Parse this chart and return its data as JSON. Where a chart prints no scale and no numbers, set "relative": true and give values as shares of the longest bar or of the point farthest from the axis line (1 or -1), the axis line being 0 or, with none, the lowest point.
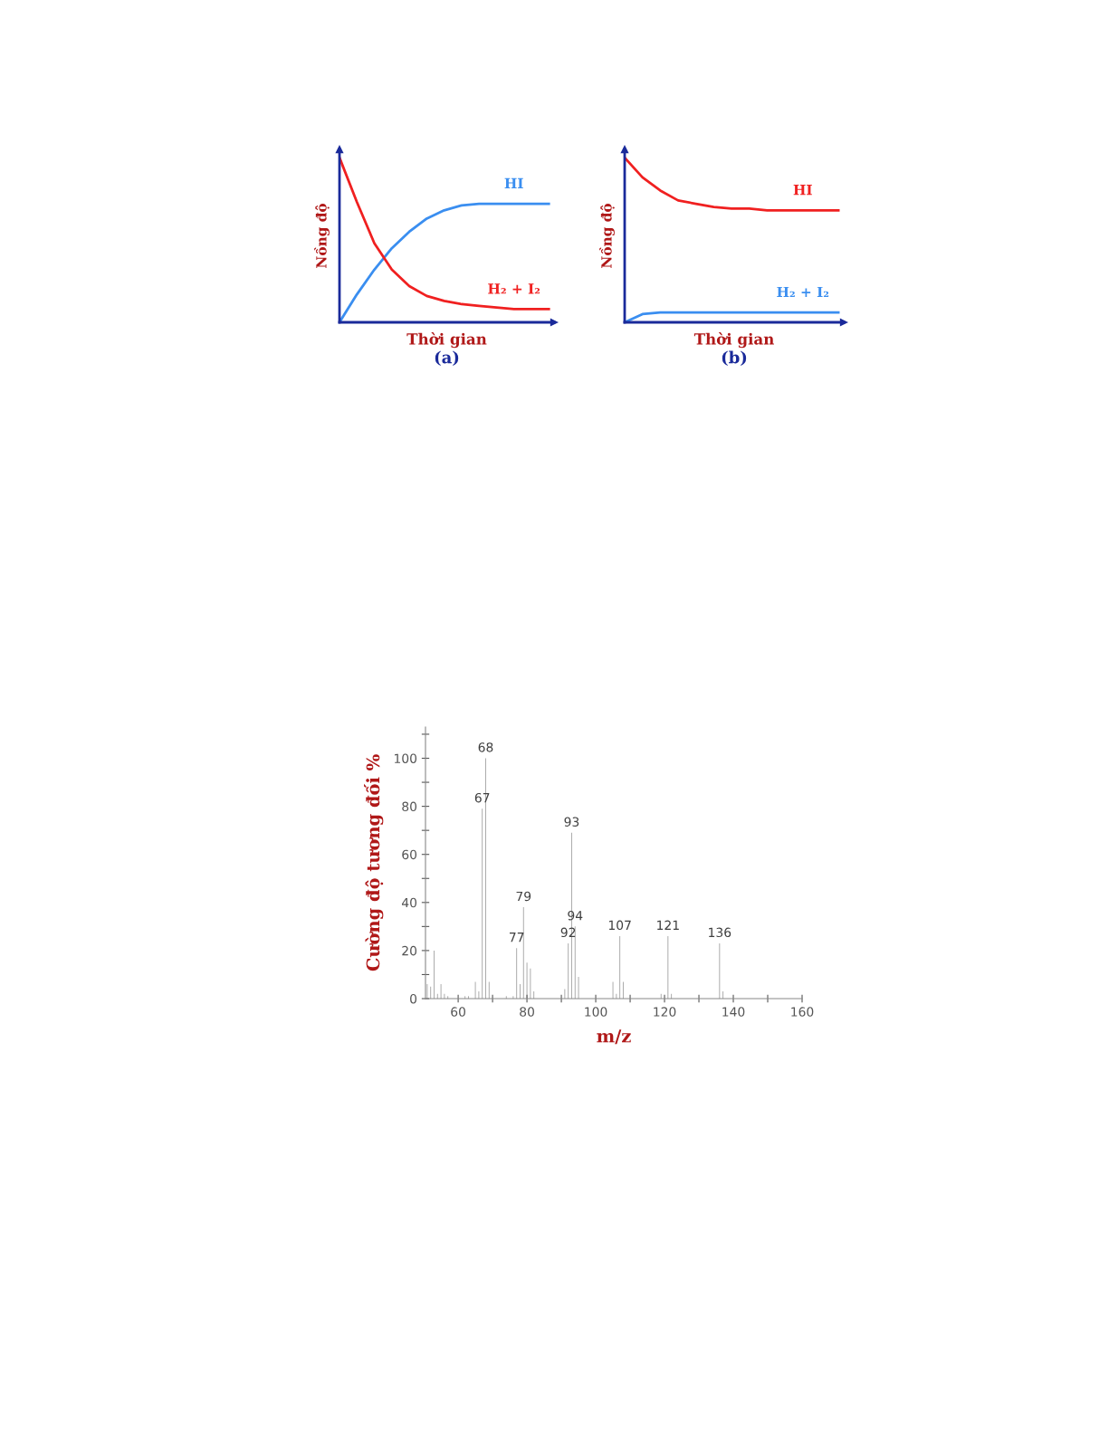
{
  "chart_data": [
    {
      "type": "line",
      "relative": true,
      "title": "(a)",
      "xlabel": "Thời gian",
      "ylabel": "Nồng độ",
      "categories": [
        null,
        null,
        null,
        null,
        null,
        null,
        null,
        null,
        null,
        null,
        null,
        null,
        null
      ],
      "series": [
        {
          "color": "#3a8ef0",
          "values": [
            0,
            0.17,
            0.32,
            0.45,
            0.55,
            0.63,
            0.68,
            0.71,
            0.72,
            0.72,
            0.72,
            0.72,
            0.72
          ]
        },
        {
          "color": "#f02020",
          "values": [
            1.0,
            0.73,
            0.48,
            0.32,
            0.22,
            0.16,
            0.13,
            0.11,
            0.1,
            0.09,
            0.08,
            0.08,
            0.08
          ]
        }
      ],
      "annotations": [
        "HI",
        "H₂ + I₂"
      ],
      "grid": false
    },
    {
      "type": "line",
      "relative": true,
      "title": "(b)",
      "xlabel": "Thời gian",
      "ylabel": "Nồng độ",
      "categories": [
        null,
        null,
        null,
        null,
        null,
        null,
        null,
        null,
        null,
        null,
        null,
        null,
        null
      ],
      "series": [
        {
          "color": "#f02020",
          "values": [
            1.0,
            0.88,
            0.8,
            0.74,
            0.72,
            0.7,
            0.69,
            0.69,
            0.68,
            0.68,
            0.68,
            0.68,
            0.68
          ]
        },
        {
          "color": "#3a8ef0",
          "values": [
            0,
            0.05,
            0.06,
            0.06,
            0.06,
            0.06,
            0.06,
            0.06,
            0.06,
            0.06,
            0.06,
            0.06,
            0.06
          ]
        }
      ],
      "annotations": [
        "HI",
        "H₂ + I₂"
      ],
      "grid": false
    },
    {
      "type": "bar",
      "xlabel": "m/z",
      "ylabel": "Cường độ tương đối %",
      "grid": false,
      "xlim": [
        50.5,
        160
      ],
      "ylim": [
        0,
        113
      ],
      "xticks": [
        60,
        {
          "value": 70,
          "label": null
        },
        80,
        {
          "value": 90,
          "label": null
        },
        100,
        {
          "value": 110,
          "label": null
        },
        120,
        {
          "value": 130,
          "label": null
        },
        140,
        {
          "value": 150,
          "label": null
        },
        160
      ],
      "yticks": [
        0,
        {
          "value": 10,
          "label": null
        },
        20,
        {
          "value": 30,
          "label": null
        },
        40,
        {
          "value": 50,
          "label": null
        },
        60,
        {
          "value": 70,
          "label": null
        },
        80,
        {
          "value": 90,
          "label": null
        },
        100,
        {
          "value": 110,
          "label": null
        }
      ],
      "x": [
        51,
        52,
        53,
        54,
        55,
        56,
        57,
        62,
        63,
        65,
        66,
        67,
        68,
        69,
        74,
        76,
        77,
        78,
        79,
        80,
        81,
        82,
        91,
        92,
        93,
        94,
        95,
        105,
        106,
        107,
        108,
        119,
        121,
        122,
        136,
        137
      ],
      "values": [
        6,
        5,
        20,
        2,
        6,
        2,
        1,
        1,
        1,
        7,
        3,
        79,
        100,
        7,
        1,
        1,
        21,
        6,
        38,
        15,
        12.5,
        3,
        4,
        23,
        69,
        30,
        9,
        7,
        2,
        26,
        7,
        2,
        26,
        2,
        23,
        3
      ],
      "annotations": [
        {
          "text": "67",
          "x": 67,
          "y": 79
        },
        {
          "text": "68",
          "x": 68,
          "y": 100
        },
        {
          "text": "77",
          "x": 77,
          "y": 21
        },
        {
          "text": "79",
          "x": 79,
          "y": 38
        },
        {
          "text": "92",
          "x": 92,
          "y": 23
        },
        {
          "text": "93",
          "x": 93,
          "y": 69
        },
        {
          "text": "94",
          "x": 94,
          "y": 30
        },
        {
          "text": "107",
          "x": 107,
          "y": 26
        },
        {
          "text": "121",
          "x": 121,
          "y": 26
        },
        {
          "text": "136",
          "x": 136,
          "y": 23
        }
      ],
      "color": "#a8a8a8"
    }
  ]
}
